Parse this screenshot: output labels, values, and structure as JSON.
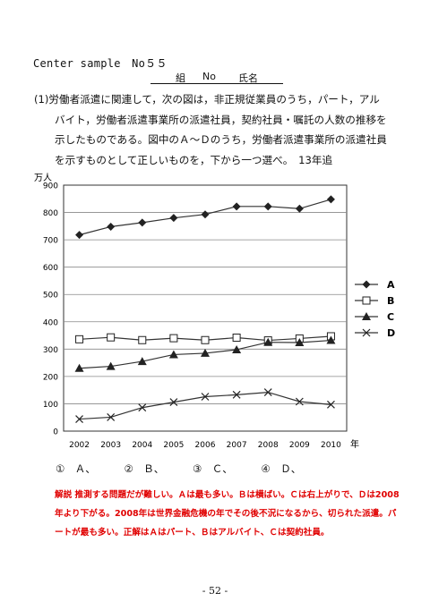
{
  "header": {
    "title": "Center sample　No５５",
    "class_label": "組",
    "number_label": "No",
    "name_label": "氏名"
  },
  "question": {
    "lines": [
      "(1)労働者派遣に関連して，次の図は，非正規従業員のうち，パート，アル",
      "バイト，労働者派遣事業所の派遣社員，契約社員・嘱託の人数の推移を",
      "示したものである。図中のＡ～Ｄのうち，労働者派遣事業所の派遣社員",
      "を示すものとして正しいものを，下から一つ選べ。　13年追"
    ]
  },
  "chart_data": {
    "type": "line",
    "ylabel": "万人",
    "xlabel": "年",
    "x": [
      2002,
      2003,
      2004,
      2005,
      2006,
      2007,
      2008,
      2009,
      2010
    ],
    "ylim": [
      0,
      900
    ],
    "yticks": [
      0,
      100,
      200,
      300,
      400,
      500,
      600,
      700,
      800,
      900
    ],
    "grid": "horizontal",
    "legend": "right",
    "series": [
      {
        "name": "A",
        "marker": "diamond",
        "values": [
          718,
          748,
          763,
          780,
          793,
          822,
          822,
          814,
          848
        ]
      },
      {
        "name": "B",
        "marker": "square",
        "values": [
          336,
          343,
          333,
          340,
          333,
          342,
          332,
          339,
          347
        ]
      },
      {
        "name": "C",
        "marker": "triangle",
        "values": [
          230,
          237,
          255,
          280,
          285,
          298,
          325,
          324,
          332
        ]
      },
      {
        "name": "D",
        "marker": "cross",
        "values": [
          44,
          51,
          86,
          106,
          126,
          133,
          142,
          108,
          97
        ]
      }
    ]
  },
  "choices": [
    "①　Ａ、",
    "②　Ｂ、",
    "③　Ｃ、",
    "④　Ｄ、"
  ],
  "commentary": "解説 推測する問題だが難しい。Ａは最も多い。Ｂは横ばい。Ｃは右上がりで、Ｄは2008年より下がる。2008年は世界金融危機の年でその後不況になるから、切られた派遣。パートが最も多い。正解はＡはパート、Ｂはアルバイト、Ｃは契約社員。",
  "page_number": "- 52 -"
}
